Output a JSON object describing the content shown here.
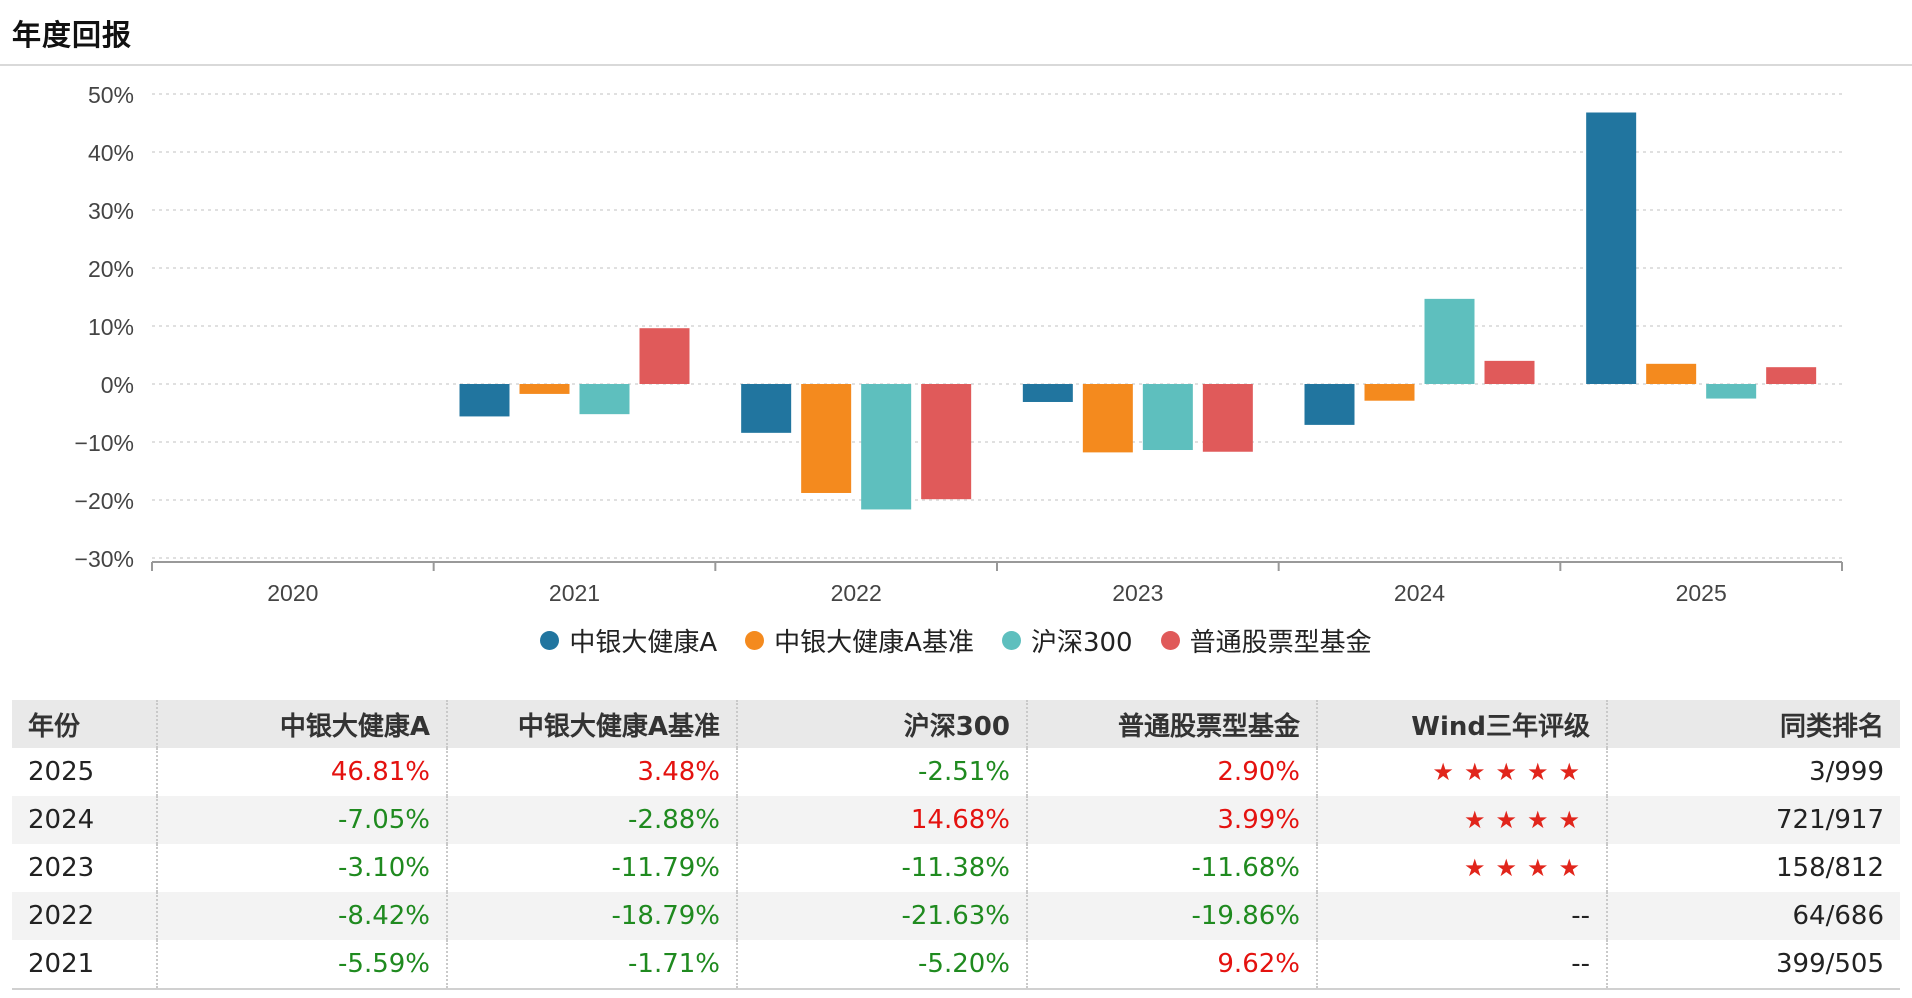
{
  "page": {
    "title": "年度回报"
  },
  "chart_data": {
    "type": "bar",
    "categories": [
      "2020",
      "2021",
      "2022",
      "2023",
      "2024",
      "2025"
    ],
    "y_ticks": [
      "50%",
      "40%",
      "30%",
      "20%",
      "10%",
      "0%",
      "−10%",
      "−20%",
      "−30%"
    ],
    "ylim": [
      -30,
      50
    ],
    "grid": true,
    "legend_position": "bottom",
    "series": [
      {
        "name": "中银大健康A",
        "color": "#21759f",
        "values": [
          null,
          -5.59,
          -8.42,
          -3.1,
          -7.05,
          46.81
        ]
      },
      {
        "name": "中银大健康A基准",
        "color": "#f48a1e",
        "values": [
          null,
          -1.71,
          -18.79,
          -11.79,
          -2.88,
          3.48
        ]
      },
      {
        "name": "沪深300",
        "color": "#5ebfbe",
        "values": [
          null,
          -5.2,
          -21.63,
          -11.38,
          14.68,
          -2.51
        ]
      },
      {
        "name": "普通股票型基金",
        "color": "#e05a5a",
        "values": [
          null,
          9.62,
          -19.86,
          -11.68,
          3.99,
          2.9
        ]
      }
    ]
  },
  "table": {
    "headers": [
      "年份",
      "中银大健康A",
      "中银大健康A基准",
      "沪深300",
      "普通股票型基金",
      "Wind三年评级",
      "同类排名"
    ],
    "rows": [
      {
        "year": "2025",
        "a": "46.81%",
        "bench": "3.48%",
        "hs300": "-2.51%",
        "peer": "2.90%",
        "rating": "★★★★★",
        "rank": "3/999"
      },
      {
        "year": "2024",
        "a": "-7.05%",
        "bench": "-2.88%",
        "hs300": "14.68%",
        "peer": "3.99%",
        "rating": "★★★★",
        "rank": "721/917"
      },
      {
        "year": "2023",
        "a": "-3.10%",
        "bench": "-11.79%",
        "hs300": "-11.38%",
        "peer": "-11.68%",
        "rating": "★★★★",
        "rank": "158/812"
      },
      {
        "year": "2022",
        "a": "-8.42%",
        "bench": "-18.79%",
        "hs300": "-21.63%",
        "peer": "-19.86%",
        "rating": "--",
        "rank": "64/686"
      },
      {
        "year": "2021",
        "a": "-5.59%",
        "bench": "-1.71%",
        "hs300": "-5.20%",
        "peer": "9.62%",
        "rating": "--",
        "rank": "399/505"
      }
    ],
    "colors": {
      "positive": "#e4120f",
      "negative": "#1f8a1f",
      "star": "#e1251b"
    }
  }
}
